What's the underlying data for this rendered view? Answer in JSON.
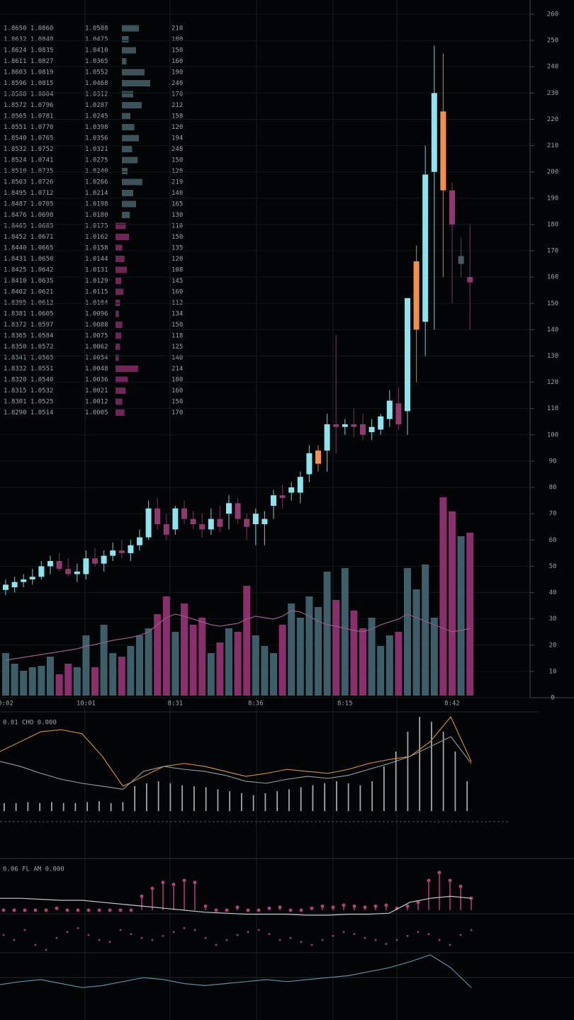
{
  "chart_data": [
    {
      "type": "candlestick",
      "categories": [
        "0:02",
        null,
        null,
        null,
        null,
        null,
        null,
        null,
        null,
        "10:01",
        null,
        null,
        null,
        null,
        null,
        null,
        null,
        null,
        null,
        "8:31",
        null,
        null,
        null,
        null,
        null,
        null,
        null,
        null,
        "8:36",
        null,
        null,
        null,
        null,
        null,
        null,
        null,
        null,
        null,
        "8:15",
        null,
        null,
        null,
        null,
        null,
        null,
        null,
        null,
        null,
        null,
        null,
        "8:42",
        null,
        null
      ],
      "open": [
        41,
        42,
        44,
        45,
        46,
        50,
        52,
        49,
        47,
        47,
        53,
        51,
        54,
        56,
        55,
        58,
        61,
        72,
        66,
        64,
        72,
        68,
        66,
        64,
        68,
        70,
        74,
        68,
        66,
        66,
        73,
        77,
        78,
        78,
        85,
        89,
        94,
        104,
        103,
        104,
        104,
        101,
        102,
        106,
        112,
        109,
        140,
        143,
        200,
        223,
        193,
        165,
        160
      ],
      "high": [
        45,
        46,
        47,
        49,
        52,
        54,
        55,
        53,
        51,
        56,
        57,
        56,
        59,
        60,
        60,
        64,
        75,
        76,
        70,
        73,
        75,
        71,
        70,
        72,
        73,
        77,
        76,
        70,
        72,
        71,
        79,
        81,
        82,
        86,
        96,
        96,
        108,
        138,
        106,
        110,
        108,
        106,
        108,
        117,
        118,
        152,
        172,
        210,
        248,
        245,
        196,
        175,
        180
      ],
      "low": [
        39,
        40,
        42,
        43,
        45,
        47,
        48,
        46,
        44,
        45,
        50,
        48,
        52,
        53,
        52,
        56,
        60,
        64,
        60,
        62,
        66,
        64,
        61,
        62,
        63,
        64,
        66,
        60,
        58,
        58,
        68,
        72,
        75,
        74,
        82,
        86,
        86,
        93,
        100,
        99,
        98,
        98,
        100,
        103,
        102,
        100,
        120,
        130,
        140,
        160,
        150,
        160,
        140
      ],
      "close": [
        43,
        44,
        45,
        46,
        50,
        52,
        49,
        47,
        48,
        53,
        51,
        54,
        56,
        55,
        58,
        61,
        72,
        66,
        62,
        72,
        68,
        66,
        64,
        68,
        65,
        74,
        68,
        65,
        70,
        68,
        77,
        76,
        80,
        84,
        93,
        94,
        104,
        103,
        104,
        103,
        100,
        103,
        107,
        113,
        104,
        152,
        166,
        199,
        230,
        193,
        180,
        168,
        158
      ],
      "colors": [
        "#8fe3ee",
        "#8fe3ee",
        "#8fe3ee",
        "#8fe3ee",
        "#8fe3ee",
        "#8fe3ee",
        "#8e3a6e",
        "#8e3a6e",
        "#8fe3ee",
        "#8fe3ee",
        "#8e3a6e",
        "#8fe3ee",
        "#8fe3ee",
        "#8e3a6e",
        "#8fe3ee",
        "#8fe3ee",
        "#8fe3ee",
        "#8e3a6e",
        "#8e3a6e",
        "#8fe3ee",
        "#8e3a6e",
        "#8e3a6e",
        "#8e3a6e",
        "#8fe3ee",
        "#8e3a6e",
        "#8fe3ee",
        "#8e3a6e",
        "#8e3a6e",
        "#8fe3ee",
        "#8fe3ee",
        "#8fe3ee",
        "#8e3a6e",
        "#8fe3ee",
        "#8fe3ee",
        "#8fe3ee",
        "#f0904a",
        "#8fe3ee",
        "#8e3a6e",
        "#8fe3ee",
        "#8e3a6e",
        "#8e3a6e",
        "#8fe3ee",
        "#8fe3ee",
        "#8fe3ee",
        "#8e3a6e",
        "#8fe3ee",
        "#f0904a",
        "#8fe3ee",
        "#8fe3ee",
        "#f0904a",
        "#8e3a6e",
        "#4a5a62",
        "#8e3a6e"
      ],
      "ylim": [
        0,
        260
      ],
      "yticks": [
        0,
        10,
        20,
        30,
        40,
        50,
        60,
        70,
        80,
        90,
        100,
        110,
        120,
        130,
        140,
        150,
        160,
        170,
        180,
        190,
        200,
        210,
        220,
        230,
        240,
        250,
        260
      ],
      "volume": [
        60,
        45,
        35,
        40,
        42,
        55,
        30,
        45,
        40,
        85,
        40,
        100,
        60,
        55,
        70,
        85,
        95,
        115,
        140,
        90,
        130,
        100,
        110,
        60,
        75,
        95,
        90,
        155,
        85,
        70,
        60,
        100,
        130,
        110,
        140,
        125,
        175,
        135,
        180,
        120,
        95,
        110,
        70,
        85,
        90,
        180,
        150,
        185,
        110,
        280,
        260,
        225,
        230
      ],
      "volume_ma": [
        50,
        52,
        54,
        56,
        58,
        60,
        62,
        64,
        66,
        70,
        72,
        75,
        78,
        80,
        82,
        85,
        90,
        100,
        110,
        115,
        112,
        108,
        104,
        100,
        98,
        100,
        102,
        108,
        112,
        110,
        108,
        112,
        120,
        118,
        112,
        105,
        100,
        98,
        95,
        92,
        90,
        94,
        100,
        104,
        108,
        115,
        110,
        105,
        100,
        95,
        90,
        92,
        95
      ],
      "y2lim": [
        0,
        300
      ],
      "up_volume_color": "#3e5f6a",
      "down_volume_color": "#8a2f6c",
      "volume_ma_color": "#9a5a8a",
      "grid": true
    },
    {
      "type": "line",
      "title": "0.01 CHO 0.000",
      "ylim": [
        0,
        100
      ],
      "series": [
        {
          "color": "#c9883a",
          "values": [
            60,
            70,
            80,
            82,
            78,
            55,
            25,
            35,
            45,
            48,
            45,
            40,
            35,
            38,
            42,
            40,
            38,
            42,
            48,
            52,
            55,
            70,
            95,
            50
          ]
        },
        {
          "color": "#8a9296",
          "values": [
            50,
            45,
            38,
            32,
            28,
            25,
            22,
            40,
            45,
            42,
            40,
            36,
            30,
            28,
            32,
            35,
            33,
            36,
            42,
            48,
            55,
            65,
            75,
            48
          ]
        }
      ],
      "bars": {
        "color": "#c8d0d4",
        "values": [
          8,
          8,
          9,
          8,
          9,
          8,
          8,
          9,
          10,
          8,
          9,
          25,
          28,
          30,
          28,
          26,
          25,
          24,
          22,
          20,
          18,
          16,
          18,
          20,
          22,
          24,
          26,
          28,
          30,
          28,
          26,
          30,
          45,
          60,
          80,
          95,
          90,
          80,
          60,
          30
        ]
      }
    },
    {
      "type": "dot",
      "title": "0.06 FL AM 0.000",
      "ylim": [
        -100,
        50
      ],
      "stems": {
        "color": "#b0407a",
        "values": [
          0,
          0,
          0,
          0,
          0,
          2,
          0,
          0,
          0,
          0,
          0,
          0,
          0,
          14,
          22,
          28,
          26,
          30,
          28,
          4,
          0,
          0,
          3,
          0,
          0,
          2,
          3,
          0,
          0,
          2,
          4,
          3,
          5,
          4,
          3,
          4,
          5,
          2,
          4,
          8,
          30,
          38,
          30,
          24,
          12
        ]
      },
      "dots": {
        "color": "#8e3a6e",
        "values": [
          -25,
          -30,
          -20,
          -35,
          -40,
          -28,
          -22,
          -18,
          -25,
          -30,
          -32,
          -20,
          -24,
          -28,
          -30,
          -26,
          -22,
          -18,
          -20,
          -28,
          -35,
          -30,
          -25,
          -22,
          -20,
          -24,
          -30,
          -28,
          -32,
          -35,
          -30,
          -26,
          -22,
          -24,
          -28,
          -30,
          -34,
          -30,
          -26,
          -22,
          -24,
          -30,
          -35,
          -25,
          -20
        ]
      },
      "series": [
        {
          "color": "#5a8fa0",
          "values": [
            -75,
            -72,
            -70,
            -74,
            -78,
            -76,
            -72,
            -68,
            -70,
            -74,
            -76,
            -74,
            -72,
            -70,
            -72,
            -70,
            -68,
            -66,
            -62,
            -58,
            -52,
            -45,
            -58,
            -78
          ]
        },
        {
          "color": "#c0c8cc",
          "values": [
            12,
            12,
            11,
            10,
            10,
            8,
            6,
            4,
            2,
            0,
            -2,
            -3,
            -4,
            -4,
            -4,
            -5,
            -5,
            -4,
            -4,
            -3,
            8,
            12,
            14,
            12
          ]
        }
      ]
    }
  ],
  "order_book": {
    "ask_color": "#4e6670",
    "bid_color": "#8a2f6c",
    "asks": [
      [
        "1.8650 1.0860",
        "1.0588",
        "210",
        30
      ],
      [
        "1.8632 1.0848",
        "1.0475",
        "180",
        12
      ],
      [
        "1.8624 1.0835",
        "1.0410",
        "150",
        25
      ],
      [
        "1.8611 1.0827",
        "1.0365",
        "160",
        8
      ],
      [
        "1.8603 1.0819",
        "1.0552",
        "190",
        40
      ],
      [
        "1.8596 1.0815",
        "1.0468",
        "240",
        50
      ],
      [
        "1.8588 1.0804",
        "1.0312",
        "170",
        20
      ],
      [
        "1.8572 1.0796",
        "1.0287",
        "212",
        35
      ],
      [
        "1.8565 1.0781",
        "1.0245",
        "158",
        15
      ],
      [
        "1.8551 1.0770",
        "1.0398",
        "120",
        22
      ],
      [
        "1.8540 1.0765",
        "1.0356",
        "194",
        30
      ],
      [
        "1.8532 1.0752",
        "1.0321",
        "248",
        18
      ],
      [
        "1.8524 1.0741",
        "1.0275",
        "150",
        28
      ],
      [
        "1.8510 1.0735",
        "1.0240",
        "120",
        10
      ],
      [
        "1.8503 1.0726",
        "1.0266",
        "219",
        36
      ],
      [
        "1.8495 1.0712",
        "1.0214",
        "140",
        20
      ],
      [
        "1.8487 1.0705",
        "1.0198",
        "165",
        25
      ],
      [
        "1.8476 1.0698",
        "1.0180",
        "130",
        14
      ]
    ],
    "bids": [
      [
        "1.8465 1.0685",
        "1.0175",
        "110",
        18
      ],
      [
        "1.8452 1.0671",
        "1.0162",
        "150",
        24
      ],
      [
        "1.8440 1.0665",
        "1.0158",
        "135",
        12
      ],
      [
        "1.8431 1.0650",
        "1.0144",
        "120",
        16
      ],
      [
        "1.8425 1.0642",
        "1.0131",
        "108",
        20
      ],
      [
        "1.8410 1.0635",
        "1.0129",
        "145",
        10
      ],
      [
        "1.8402 1.0621",
        "1.0115",
        "160",
        14
      ],
      [
        "1.8395 1.0612",
        "1.0104",
        "112",
        8
      ],
      [
        "1.8381 1.0605",
        "1.0096",
        "134",
        6
      ],
      [
        "1.8372 1.0597",
        "1.0088",
        "150",
        12
      ],
      [
        "1.8365 1.0584",
        "1.0075",
        "118",
        10
      ],
      [
        "1.8350 1.0572",
        "1.0062",
        "125",
        8
      ],
      [
        "1.8341 1.0565",
        "1.0054",
        "140",
        6
      ],
      [
        "1.8332 1.0551",
        "1.0048",
        "214",
        40
      ],
      [
        "1.8320 1.0540",
        "1.0036",
        "180",
        22
      ],
      [
        "1.8315 1.0532",
        "1.0021",
        "160",
        18
      ],
      [
        "1.8301 1.0525",
        "1.0012",
        "150",
        12
      ],
      [
        "1.8290 1.0514",
        "1.0005",
        "170",
        16
      ]
    ]
  }
}
